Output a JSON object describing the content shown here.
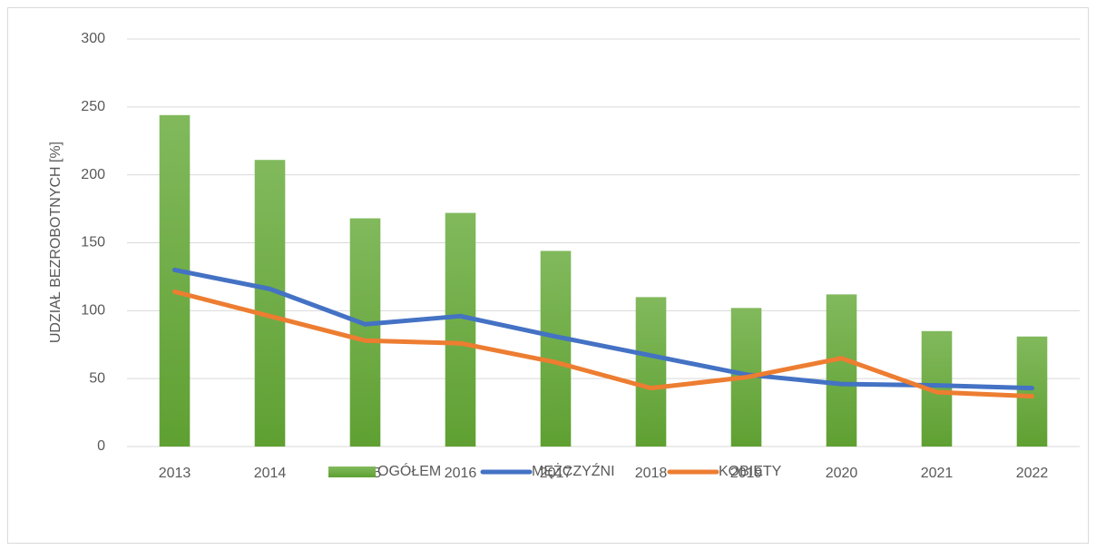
{
  "chart_data": {
    "type": "bar",
    "y_label": "UDZIAŁ BEZROBOTNYCH [%]",
    "categories": [
      "2013",
      "2014",
      "2015",
      "2016",
      "2017",
      "2018",
      "2019",
      "2020",
      "2021",
      "2022"
    ],
    "series": [
      {
        "name": "OGÓŁEM",
        "type": "bar",
        "color": "#70ad47",
        "values": [
          244,
          211,
          168,
          172,
          144,
          110,
          102,
          112,
          85,
          81
        ]
      },
      {
        "name": "MĘŻCZYŹNI",
        "type": "line",
        "color": "#4472c4",
        "values": [
          130,
          116,
          90,
          96,
          81,
          67,
          53,
          46,
          45,
          43
        ]
      },
      {
        "name": "KOBIETY",
        "type": "line",
        "color": "#ed7d31",
        "values": [
          114,
          96,
          78,
          76,
          62,
          43,
          51,
          65,
          40,
          37
        ]
      }
    ],
    "ylim": [
      0,
      300
    ],
    "yticks": [
      0,
      50,
      100,
      150,
      200,
      250,
      300
    ],
    "grid": true,
    "legend": "bottom"
  }
}
